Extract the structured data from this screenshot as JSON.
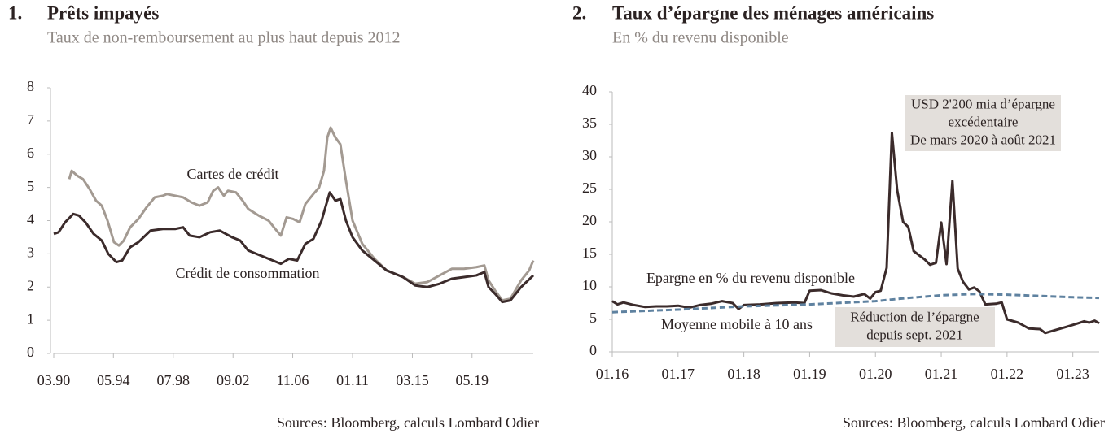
{
  "chart_data": [
    {
      "type": "line",
      "number": "1.",
      "title": "Prêts impayés",
      "subtitle": "Taux de non-remboursement au plus haut depuis 2012",
      "source": "Sources: Bloomberg, calculs Lombard Odier",
      "xlim": [
        1990.17,
        2023.6
      ],
      "xticks": [
        {
          "value": 1990.17,
          "label": "03.90"
        },
        {
          "value": 1994.33,
          "label": "05.94"
        },
        {
          "value": 1998.5,
          "label": "07.98"
        },
        {
          "value": 2002.67,
          "label": "09.02"
        },
        {
          "value": 2006.83,
          "label": "11.06"
        },
        {
          "value": 2011.0,
          "label": "01.11"
        },
        {
          "value": 2015.17,
          "label": "03.15"
        },
        {
          "value": 2019.33,
          "label": "05.19"
        }
      ],
      "ylim": [
        0,
        8
      ],
      "yticks": [
        0,
        1,
        2,
        3,
        4,
        5,
        6,
        7,
        8
      ],
      "series": [
        {
          "name": "Cartes de crédit",
          "color": "#a39a92",
          "x": [
            1991.25,
            1991.42,
            1991.82,
            1992.21,
            1992.67,
            1993.12,
            1993.52,
            1993.92,
            1994.37,
            1994.71,
            1995.05,
            1995.5,
            1996.07,
            1996.64,
            1997.21,
            1997.78,
            1998.06,
            1998.63,
            1999.19,
            1999.76,
            2000.33,
            2000.9,
            2001.29,
            2001.63,
            2002.03,
            2002.32,
            2002.88,
            2003.34,
            2003.73,
            2004.47,
            2005.15,
            2005.61,
            2006.0,
            2006.4,
            2006.86,
            2007.31,
            2007.71,
            2008.27,
            2008.67,
            2009.01,
            2009.24,
            2009.47,
            2009.81,
            2010.15,
            2010.54,
            2011.0,
            2011.68,
            2012.53,
            2013.38,
            2014.52,
            2015.37,
            2016.22,
            2017.07,
            2017.92,
            2018.77,
            2019.63,
            2020.19,
            2020.48,
            2020.93,
            2021.44,
            2022.01,
            2022.75,
            2023.31,
            2023.6
          ],
          "values": [
            5.25,
            5.5,
            5.35,
            5.25,
            4.95,
            4.6,
            4.45,
            4.0,
            3.35,
            3.25,
            3.4,
            3.8,
            4.05,
            4.4,
            4.7,
            4.75,
            4.8,
            4.75,
            4.7,
            4.55,
            4.45,
            4.55,
            4.9,
            5.0,
            4.75,
            4.9,
            4.85,
            4.6,
            4.35,
            4.15,
            4.0,
            3.75,
            3.55,
            4.1,
            4.05,
            3.95,
            4.5,
            4.8,
            5.0,
            5.5,
            6.5,
            6.8,
            6.5,
            6.3,
            5.2,
            4.0,
            3.3,
            2.85,
            2.5,
            2.3,
            2.1,
            2.15,
            2.35,
            2.55,
            2.55,
            2.6,
            2.65,
            2.2,
            1.9,
            1.6,
            1.65,
            2.2,
            2.5,
            2.8
          ]
        },
        {
          "name": "Crédit de consommation",
          "color": "#3b2b2b",
          "x": [
            1990.17,
            1990.51,
            1990.96,
            1991.53,
            1991.93,
            1992.38,
            1992.95,
            1993.52,
            1993.97,
            1994.54,
            1994.94,
            1995.5,
            1996.07,
            1996.92,
            1997.78,
            1998.63,
            1999.19,
            1999.65,
            2000.33,
            2001.07,
            2001.75,
            2002.6,
            2003.17,
            2003.73,
            2004.3,
            2005.15,
            2006.0,
            2006.57,
            2007.14,
            2007.71,
            2008.27,
            2008.84,
            2009.41,
            2009.81,
            2010.15,
            2010.54,
            2011.0,
            2011.68,
            2012.53,
            2013.38,
            2014.52,
            2015.37,
            2016.22,
            2017.07,
            2017.92,
            2018.77,
            2019.63,
            2020.19,
            2020.48,
            2020.93,
            2021.44,
            2022.01,
            2022.75,
            2023.6
          ],
          "values": [
            3.6,
            3.65,
            3.95,
            4.2,
            4.15,
            3.95,
            3.6,
            3.4,
            3.0,
            2.75,
            2.8,
            3.2,
            3.35,
            3.7,
            3.75,
            3.75,
            3.8,
            3.55,
            3.5,
            3.65,
            3.7,
            3.5,
            3.4,
            3.1,
            3.0,
            2.85,
            2.7,
            2.85,
            2.8,
            3.3,
            3.45,
            4.0,
            4.85,
            4.6,
            4.65,
            4.0,
            3.5,
            3.1,
            2.8,
            2.5,
            2.3,
            2.05,
            2.0,
            2.1,
            2.25,
            2.3,
            2.35,
            2.45,
            2.0,
            1.8,
            1.55,
            1.6,
            2.0,
            2.35
          ]
        }
      ]
    },
    {
      "type": "line",
      "number": "2.",
      "title": "Taux d’épargne des ménages américains",
      "subtitle": "En % du revenu disponible",
      "source": "Sources: Bloomberg, calculs Lombard Odier",
      "xlim": [
        2016.0,
        2023.4
      ],
      "xticks": [
        {
          "value": 2016,
          "label": "01.16"
        },
        {
          "value": 2017,
          "label": "01.17"
        },
        {
          "value": 2018,
          "label": "01.18"
        },
        {
          "value": 2019,
          "label": "01.19"
        },
        {
          "value": 2020,
          "label": "01.20"
        },
        {
          "value": 2021,
          "label": "01.21"
        },
        {
          "value": 2022,
          "label": "01.22"
        },
        {
          "value": 2023,
          "label": "01.23"
        }
      ],
      "ylim": [
        0,
        40
      ],
      "yticks": [
        0,
        5,
        10,
        15,
        20,
        25,
        30,
        35,
        40
      ],
      "series": [
        {
          "name": "Epargne en % du revenu disponible",
          "color": "#3b2b2b",
          "x": [
            2016.0,
            2016.08,
            2016.17,
            2016.33,
            2016.5,
            2016.67,
            2016.83,
            2017.0,
            2017.17,
            2017.33,
            2017.5,
            2017.67,
            2017.83,
            2017.92,
            2018.0,
            2018.25,
            2018.5,
            2018.75,
            2018.92,
            2019.0,
            2019.17,
            2019.33,
            2019.5,
            2019.67,
            2019.83,
            2019.92,
            2020.0,
            2020.08,
            2020.17,
            2020.25,
            2020.33,
            2020.42,
            2020.5,
            2020.58,
            2020.67,
            2020.75,
            2020.83,
            2020.92,
            2021.0,
            2021.08,
            2021.17,
            2021.25,
            2021.33,
            2021.42,
            2021.5,
            2021.58,
            2021.67,
            2021.83,
            2021.92,
            2022.0,
            2022.17,
            2022.33,
            2022.5,
            2022.58,
            2022.75,
            2022.92,
            2023.08,
            2023.17,
            2023.25,
            2023.33,
            2023.4
          ],
          "values": [
            7.8,
            7.3,
            7.6,
            7.2,
            6.9,
            7.0,
            7.0,
            7.1,
            6.8,
            7.2,
            7.4,
            7.8,
            7.5,
            6.6,
            7.2,
            7.3,
            7.5,
            7.6,
            7.5,
            9.4,
            9.5,
            9.0,
            8.7,
            8.5,
            8.9,
            8.2,
            9.2,
            9.4,
            12.9,
            33.7,
            24.9,
            20.0,
            19.2,
            15.5,
            14.8,
            14.2,
            13.4,
            13.7,
            19.9,
            13.5,
            26.3,
            12.8,
            10.8,
            9.6,
            9.9,
            9.3,
            7.3,
            7.4,
            7.6,
            5.0,
            4.5,
            3.6,
            3.5,
            2.9,
            3.4,
            3.9,
            4.4,
            4.7,
            4.5,
            4.8,
            4.4
          ]
        },
        {
          "name": "Moyenne mobile à 10 ans",
          "color": "#5f82a0",
          "dashed": true,
          "x": [
            2016.0,
            2017.0,
            2018.0,
            2019.0,
            2020.0,
            2020.5,
            2021.0,
            2021.5,
            2022.0,
            2022.5,
            2023.0,
            2023.4
          ],
          "values": [
            6.1,
            6.5,
            7.0,
            7.3,
            7.8,
            8.3,
            8.7,
            8.9,
            8.8,
            8.6,
            8.4,
            8.3
          ]
        }
      ],
      "annotations": [
        {
          "lines": [
            "USD 2'200 mia d’épargne",
            "excédentaire",
            "De mars 2020 à août 2021"
          ]
        },
        {
          "lines": [
            "Réduction de l’épargne",
            "depuis sept. 2021"
          ]
        }
      ]
    }
  ]
}
